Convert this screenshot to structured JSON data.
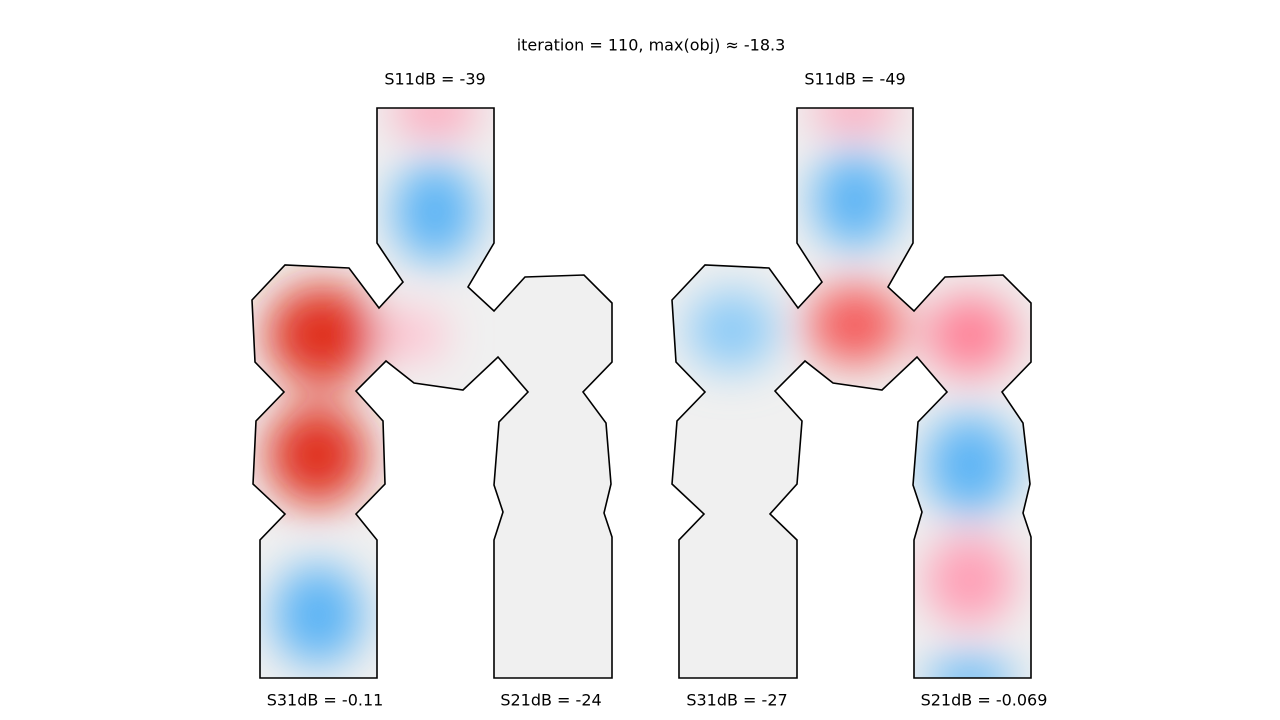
{
  "title": "iteration = 110, max(obj) ≈ -18.3",
  "panels": [
    {
      "s11": "S11dB = -39",
      "s31": "S31dB = -0.11",
      "s21": "S21dB = -24"
    },
    {
      "s11": "S11dB = -49",
      "s31": "S31dB = -27",
      "s21": "S21dB = -0.069"
    }
  ]
}
